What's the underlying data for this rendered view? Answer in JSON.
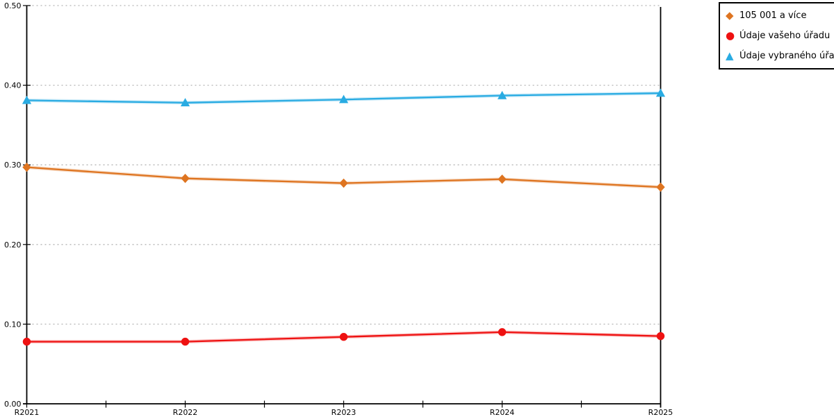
{
  "chart_data": {
    "type": "line",
    "categories": [
      "R2021",
      "R2022",
      "R2023",
      "R2024",
      "R2025"
    ],
    "series": [
      {
        "name": "105 001 a více",
        "marker": "diamond-icon",
        "color": "#DE7420",
        "values": [
          0.297,
          0.283,
          0.277,
          0.282,
          0.272
        ]
      },
      {
        "name": "Údaje vašeho úřadu",
        "marker": "circle-icon",
        "color": "#EE1111",
        "values": [
          0.078,
          0.078,
          0.084,
          0.09,
          0.085
        ]
      },
      {
        "name": "Údaje vybraného úřadu",
        "marker": "triangle-icon",
        "color": "#29ABE2",
        "values": [
          0.381,
          0.378,
          0.382,
          0.387,
          0.39
        ]
      }
    ],
    "ylim": [
      0.0,
      0.5
    ],
    "ytick_labels": [
      "0.00",
      "0.10",
      "0.20",
      "0.30",
      "0.40",
      "0.50"
    ],
    "ytick_step": 0.1,
    "xlabel": "",
    "ylabel": "",
    "grid": "dotted-horizontal",
    "grid_color": "#b5b5b5",
    "axis_color": "#000000",
    "legend_position": "top-right"
  }
}
